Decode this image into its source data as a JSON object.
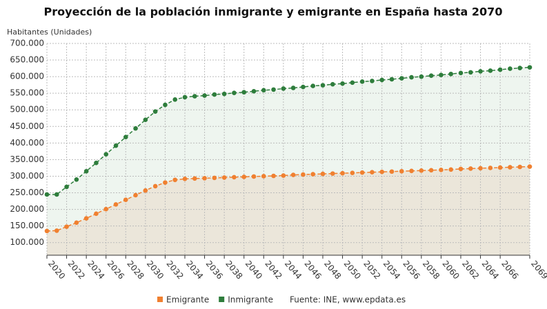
{
  "chart_data": {
    "type": "line",
    "title": "Proyección de la población inmigrante y emigrante en España hasta 2070",
    "y_label": "Habitantes (Unidades)",
    "source": "Fuente: INE, www.epdata.es",
    "x": [
      2020,
      2021,
      2022,
      2023,
      2024,
      2025,
      2026,
      2027,
      2028,
      2029,
      2030,
      2031,
      2032,
      2033,
      2034,
      2035,
      2036,
      2037,
      2038,
      2039,
      2040,
      2041,
      2042,
      2043,
      2044,
      2045,
      2046,
      2047,
      2048,
      2049,
      2050,
      2051,
      2052,
      2053,
      2054,
      2055,
      2056,
      2057,
      2058,
      2059,
      2060,
      2061,
      2062,
      2063,
      2064,
      2065,
      2066,
      2067,
      2068,
      2069
    ],
    "xlim": [
      2020,
      2069
    ],
    "xticks": [
      2020,
      2022,
      2024,
      2026,
      2028,
      2030,
      2032,
      2034,
      2036,
      2038,
      2040,
      2042,
      2044,
      2046,
      2048,
      2050,
      2052,
      2054,
      2056,
      2058,
      2060,
      2062,
      2064,
      2066,
      2069
    ],
    "ylim": [
      62000,
      700000
    ],
    "yticks": [
      {
        "value": 100000,
        "label": "100.000"
      },
      {
        "value": 150000,
        "label": "150.000"
      },
      {
        "value": 200000,
        "label": "200.000"
      },
      {
        "value": 250000,
        "label": "250.000"
      },
      {
        "value": 300000,
        "label": "300.000"
      },
      {
        "value": 350000,
        "label": "350.000"
      },
      {
        "value": 400000,
        "label": "400.000"
      },
      {
        "value": 450000,
        "label": "450.000"
      },
      {
        "value": 500000,
        "label": "500.000"
      },
      {
        "value": 550000,
        "label": "550.000"
      },
      {
        "value": 600000,
        "label": "600.000"
      },
      {
        "value": 650000,
        "label": "650.000"
      },
      {
        "value": 700000,
        "label": "700.000"
      }
    ],
    "grid": true,
    "legend": "bottom",
    "series": [
      {
        "name": "Emigrante",
        "color": "#f08030",
        "area_color": "#ebe6da",
        "values": [
          135000,
          136000,
          148000,
          160000,
          173000,
          187000,
          201000,
          215000,
          229000,
          243000,
          257000,
          270000,
          281000,
          289000,
          292000,
          293000,
          294000,
          295000,
          296000,
          297000,
          298000,
          299000,
          300000,
          301000,
          302000,
          304000,
          305000,
          306000,
          307000,
          308000,
          309000,
          310000,
          311000,
          312000,
          313000,
          314000,
          315000,
          316000,
          317000,
          318000,
          319000,
          320000,
          322000,
          323000,
          324000,
          325000,
          326000,
          327000,
          328000,
          329000
        ]
      },
      {
        "name": "Inmigrante",
        "color": "#2e7d3c",
        "area_color": "#eef5ef",
        "values": [
          245000,
          245000,
          268000,
          290000,
          315000,
          340000,
          366000,
          392000,
          418000,
          444000,
          470000,
          495000,
          515000,
          531000,
          538000,
          541000,
          543000,
          546000,
          548000,
          551000,
          553000,
          556000,
          559000,
          561000,
          564000,
          566000,
          569000,
          572000,
          574000,
          577000,
          579000,
          582000,
          585000,
          587000,
          590000,
          592000,
          595000,
          598000,
          600000,
          603000,
          605000,
          608000,
          611000,
          613000,
          616000,
          618000,
          621000,
          624000,
          626000,
          628000
        ]
      }
    ]
  }
}
